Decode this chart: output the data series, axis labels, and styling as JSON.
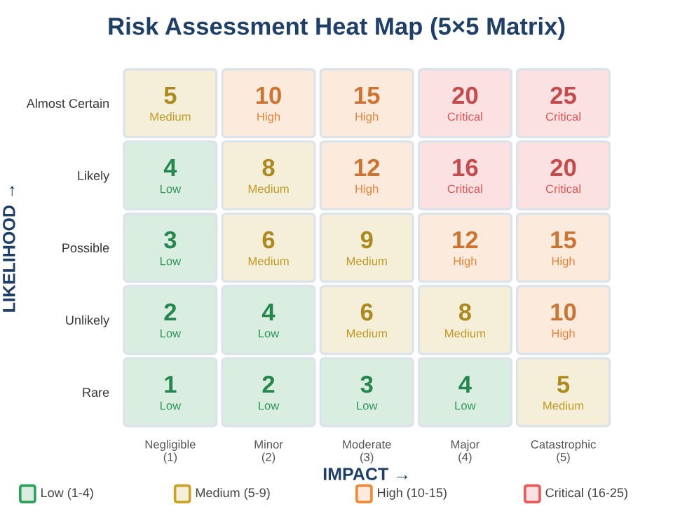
{
  "chart_data": {
    "type": "heatmap",
    "title": "Risk Assessment Heat Map (5×5 Matrix)",
    "xlabel": "IMPACT →",
    "ylabel": "LIKELIHOOD →",
    "categories": [
      "Negligible\n(1)",
      "Minor\n(2)",
      "Moderate\n(3)",
      "Major\n(4)",
      "Catastrophic\n(5)"
    ],
    "y_categories": [
      "Almost Certain",
      "Likely",
      "Possible",
      "Unlikely",
      "Rare"
    ],
    "cells": [
      [
        5,
        10,
        15,
        20,
        25
      ],
      [
        4,
        8,
        12,
        16,
        20
      ],
      [
        3,
        6,
        9,
        12,
        15
      ],
      [
        2,
        4,
        6,
        8,
        10
      ],
      [
        1,
        2,
        3,
        4,
        5
      ]
    ],
    "cell_labels": [
      [
        "5\nMedium",
        "10\nHigh",
        "15\nHigh",
        "20\nCritical",
        "25\nCritical"
      ],
      [
        "4\nLow",
        "8\nMedium",
        "12\nHigh",
        "16\nCritical",
        "20\nCritical"
      ],
      [
        "3\nLow",
        "6\nMedium",
        "9\nMedium",
        "12\nHigh",
        "15\nHigh"
      ],
      [
        "2\nLow",
        "4\nLow",
        "6\nMedium",
        "8\nMedium",
        "10\nHigh"
      ],
      [
        "1\nLow",
        "2\nLow",
        "3\nLow",
        "4\nLow",
        "5\nMedium"
      ]
    ],
    "colors": [
      [
        "#c9a227",
        "#ee8a3c",
        "#ee8a3c",
        "#e85a5a",
        "#e85a5a"
      ],
      [
        "#2e9e5b",
        "#c9a227",
        "#ee8a3c",
        "#e85a5a",
        "#e85a5a"
      ],
      [
        "#2e9e5b",
        "#c9a227",
        "#c9a227",
        "#ee8a3c",
        "#ee8a3c"
      ],
      [
        "#2e9e5b",
        "#2e9e5b",
        "#c9a227",
        "#c9a227",
        "#ee8a3c"
      ],
      [
        "#2e9e5b",
        "#2e9e5b",
        "#2e9e5b",
        "#2e9e5b",
        "#c9a227"
      ]
    ],
    "annotations": [
      "Low (1-4)",
      "Medium (5-9)",
      "High (10-15)",
      "Critical (16-25)"
    ]
  }
}
